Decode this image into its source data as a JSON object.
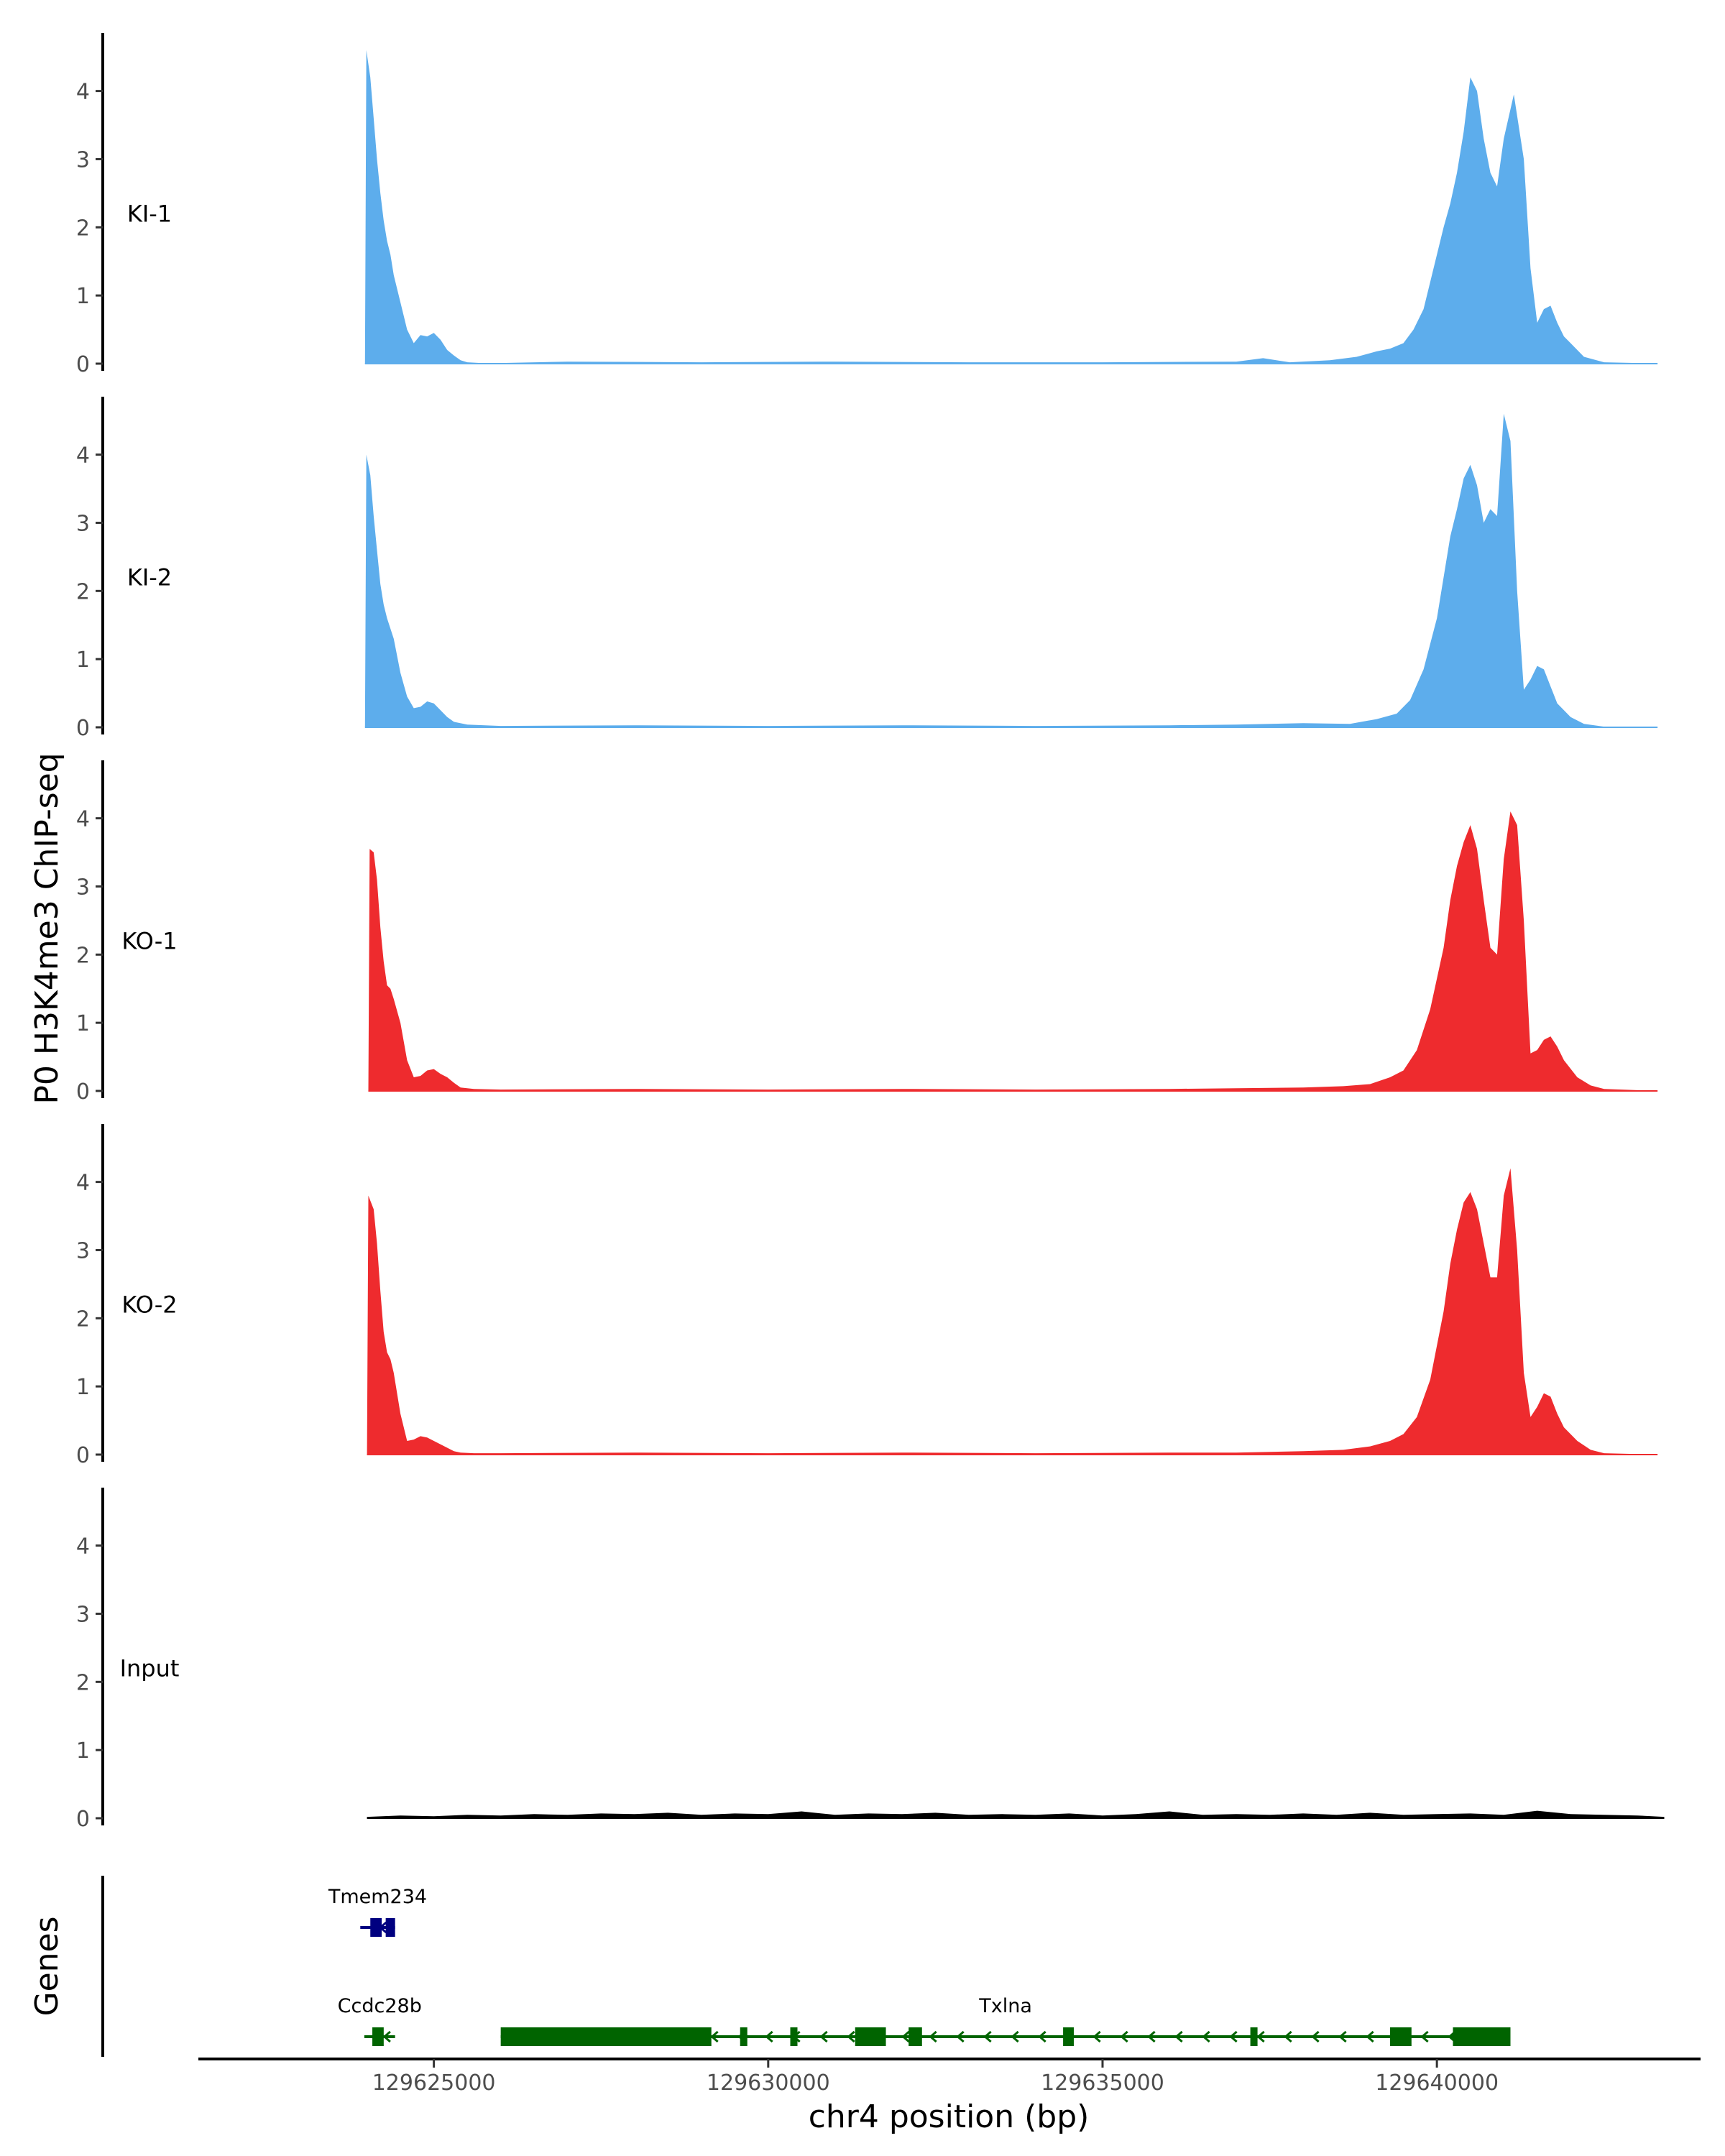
{
  "chart_data": {
    "type": "area",
    "figure": "genome-browser-tracks",
    "ylabel": "P0 H3K4me3 ChIP-seq",
    "xlabel": "chr4 position (bp)",
    "genes_label": "Genes",
    "xlim": [
      129621500,
      129643900
    ],
    "ylim": [
      0,
      4.85
    ],
    "y_ticks": [
      0,
      1,
      2,
      3,
      4
    ],
    "x_ticks": [
      129625000,
      129630000,
      129635000,
      129640000
    ],
    "x_tick_labels": [
      "129625000",
      "129630000",
      "129635000",
      "129640000"
    ],
    "grid": false,
    "legend": "none",
    "tracks": [
      {
        "name": "KI-1",
        "color": "#5DADEC",
        "x": [
          129623970,
          129623990,
          129624050,
          129624100,
          129624150,
          129624200,
          129624250,
          129624300,
          129624350,
          129624400,
          129624500,
          129624600,
          129624700,
          129624800,
          129624900,
          129625000,
          129625100,
          129625200,
          129625300,
          129625400,
          129625500,
          129625700,
          129626000,
          129627000,
          129629000,
          129631000,
          129633000,
          129635000,
          129637000,
          129637400,
          129637800,
          129638400,
          129638800,
          129639100,
          129639300,
          129639500,
          129639650,
          129639800,
          129639900,
          129640000,
          129640100,
          129640200,
          129640300,
          129640400,
          129640500,
          129640600,
          129640700,
          129640800,
          129640900,
          129641000,
          129641150,
          129641300,
          129641400,
          129641500,
          129641600,
          129641700,
          129641800,
          129641900,
          129642000,
          129642200,
          129642500,
          129643000,
          129643300
        ],
        "y": [
          0,
          4.6,
          4.2,
          3.6,
          3.0,
          2.5,
          2.1,
          1.8,
          1.6,
          1.3,
          0.9,
          0.5,
          0.3,
          0.42,
          0.4,
          0.45,
          0.35,
          0.2,
          0.12,
          0.05,
          0.02,
          0.01,
          0.01,
          0.03,
          0.02,
          0.03,
          0.02,
          0.02,
          0.03,
          0.08,
          0.02,
          0.05,
          0.1,
          0.18,
          0.22,
          0.3,
          0.5,
          0.8,
          1.2,
          1.6,
          2.0,
          2.35,
          2.8,
          3.4,
          4.2,
          4.0,
          3.3,
          2.8,
          2.6,
          3.3,
          3.95,
          3.0,
          1.4,
          0.6,
          0.8,
          0.85,
          0.6,
          0.4,
          0.3,
          0.1,
          0.02,
          0.01,
          0
        ]
      },
      {
        "name": "KI-2",
        "color": "#5DADEC",
        "x": [
          129623970,
          129623990,
          129624050,
          129624100,
          129624150,
          129624200,
          129624250,
          129624300,
          129624400,
          129624500,
          129624600,
          129624700,
          129624800,
          129624900,
          129625000,
          129625100,
          129625200,
          129625300,
          129625500,
          129626000,
          129628000,
          129630000,
          129632000,
          129634000,
          129636000,
          129637000,
          129638000,
          129638700,
          129639100,
          129639400,
          129639600,
          129639800,
          129640000,
          129640100,
          129640200,
          129640300,
          129640400,
          129640500,
          129640600,
          129640700,
          129640800,
          129640900,
          129641000,
          129641100,
          129641200,
          129641300,
          129641400,
          129641500,
          129641600,
          129641700,
          129641800,
          129642000,
          129642200,
          129642500,
          129643300
        ],
        "y": [
          0,
          4.0,
          3.7,
          3.1,
          2.6,
          2.1,
          1.8,
          1.6,
          1.3,
          0.8,
          0.45,
          0.28,
          0.3,
          0.38,
          0.35,
          0.25,
          0.15,
          0.08,
          0.04,
          0.02,
          0.03,
          0.02,
          0.03,
          0.02,
          0.03,
          0.04,
          0.06,
          0.05,
          0.12,
          0.2,
          0.4,
          0.85,
          1.6,
          2.2,
          2.8,
          3.2,
          3.65,
          3.85,
          3.55,
          3.0,
          3.2,
          3.1,
          4.6,
          4.2,
          2.0,
          0.55,
          0.7,
          0.9,
          0.85,
          0.6,
          0.35,
          0.15,
          0.05,
          0.01,
          0
        ]
      },
      {
        "name": "KO-1",
        "color": "#EE2B2E",
        "x": [
          129624020,
          129624040,
          129624100,
          129624150,
          129624200,
          129624250,
          129624300,
          129624350,
          129624400,
          129624500,
          129624600,
          129624700,
          129624800,
          129624900,
          129625000,
          129625100,
          129625200,
          129625300,
          129625400,
          129625600,
          129626000,
          129628000,
          129630000,
          129632000,
          129634000,
          129636000,
          129637000,
          129638000,
          129638600,
          129639000,
          129639300,
          129639500,
          129639700,
          129639900,
          129640100,
          129640200,
          129640300,
          129640400,
          129640500,
          129640600,
          129640700,
          129640800,
          129640900,
          129641000,
          129641100,
          129641200,
          129641300,
          129641400,
          129641500,
          129641600,
          129641700,
          129641800,
          129641900,
          129642100,
          129642300,
          129642500,
          129643300
        ],
        "y": [
          0,
          3.55,
          3.5,
          3.1,
          2.4,
          1.9,
          1.55,
          1.5,
          1.35,
          1.0,
          0.45,
          0.2,
          0.22,
          0.3,
          0.32,
          0.25,
          0.2,
          0.12,
          0.05,
          0.03,
          0.02,
          0.03,
          0.02,
          0.03,
          0.02,
          0.03,
          0.04,
          0.05,
          0.07,
          0.1,
          0.2,
          0.3,
          0.6,
          1.2,
          2.1,
          2.8,
          3.3,
          3.65,
          3.9,
          3.55,
          2.8,
          2.1,
          2.0,
          3.4,
          4.1,
          3.9,
          2.5,
          0.55,
          0.6,
          0.75,
          0.8,
          0.65,
          0.45,
          0.2,
          0.08,
          0.03,
          0
        ]
      },
      {
        "name": "KO-2",
        "color": "#EE2B2E",
        "x": [
          129624000,
          129624020,
          129624100,
          129624150,
          129624200,
          129624250,
          129624300,
          129624350,
          129624400,
          129624500,
          129624600,
          129624700,
          129624800,
          129624900,
          129625000,
          129625100,
          129625200,
          129625300,
          129625400,
          129625600,
          129626000,
          129628000,
          129630000,
          129632000,
          129634000,
          129636000,
          129637000,
          129638000,
          129638600,
          129639000,
          129639300,
          129639500,
          129639700,
          129639900,
          129640100,
          129640200,
          129640300,
          129640400,
          129640500,
          129640600,
          129640700,
          129640800,
          129640900,
          129641000,
          129641100,
          129641200,
          129641300,
          129641400,
          129641500,
          129641600,
          129641700,
          129641800,
          129641900,
          129642100,
          129642300,
          129642500,
          129643300
        ],
        "y": [
          0,
          3.8,
          3.6,
          3.1,
          2.4,
          1.8,
          1.5,
          1.4,
          1.2,
          0.6,
          0.2,
          0.22,
          0.27,
          0.25,
          0.2,
          0.15,
          0.1,
          0.05,
          0.03,
          0.02,
          0.02,
          0.03,
          0.02,
          0.03,
          0.02,
          0.03,
          0.03,
          0.05,
          0.07,
          0.12,
          0.2,
          0.3,
          0.55,
          1.1,
          2.1,
          2.8,
          3.3,
          3.7,
          3.85,
          3.6,
          3.1,
          2.6,
          2.6,
          3.8,
          4.2,
          3.0,
          1.2,
          0.55,
          0.7,
          0.9,
          0.85,
          0.6,
          0.4,
          0.2,
          0.07,
          0.02,
          0
        ]
      },
      {
        "name": "Input",
        "color": "#000000",
        "x": [
          129624000,
          129624500,
          129625000,
          129625500,
          129626000,
          129626500,
          129627000,
          129627500,
          129628000,
          129628500,
          129629000,
          129629500,
          129630000,
          129630500,
          129631000,
          129631500,
          129632000,
          129632500,
          129633000,
          129633500,
          129634000,
          129634500,
          129635000,
          129635500,
          129636000,
          129636500,
          129637000,
          129637500,
          129638000,
          129638500,
          129639000,
          129639500,
          129640000,
          129640500,
          129641000,
          129641500,
          129642000,
          129642500,
          129643000,
          129643400
        ],
        "y": [
          0.02,
          0.04,
          0.03,
          0.05,
          0.04,
          0.06,
          0.05,
          0.07,
          0.06,
          0.08,
          0.05,
          0.07,
          0.06,
          0.1,
          0.05,
          0.07,
          0.06,
          0.08,
          0.05,
          0.06,
          0.05,
          0.07,
          0.04,
          0.06,
          0.1,
          0.05,
          0.06,
          0.05,
          0.07,
          0.05,
          0.08,
          0.05,
          0.06,
          0.07,
          0.05,
          0.11,
          0.06,
          0.05,
          0.04,
          0.02
        ]
      }
    ],
    "genes": [
      {
        "name": "Tmem234",
        "color": "#000080",
        "start": 129623900,
        "end": 129624420,
        "row": "upper",
        "exons": [
          [
            129624050,
            129624220
          ],
          [
            129624280,
            129624420
          ]
        ]
      },
      {
        "name": "Ccdc28b",
        "color": "#006400",
        "start": 129623960,
        "end": 129624420,
        "row": "lower",
        "exons": [
          [
            129624080,
            129624250
          ]
        ]
      },
      {
        "name": "Txlna",
        "color": "#006400",
        "start": 129626000,
        "end": 129641100,
        "row": "lower",
        "exons": [
          [
            129626000,
            129629150
          ],
          [
            129629580,
            129629660
          ],
          [
            129630330,
            129630410
          ],
          [
            129631300,
            129631760
          ],
          [
            129632100,
            129632300
          ],
          [
            129634410,
            129634570
          ],
          [
            129637210,
            129637290
          ],
          [
            129639300,
            129639620
          ],
          [
            129640240,
            129641100
          ]
        ]
      }
    ]
  }
}
